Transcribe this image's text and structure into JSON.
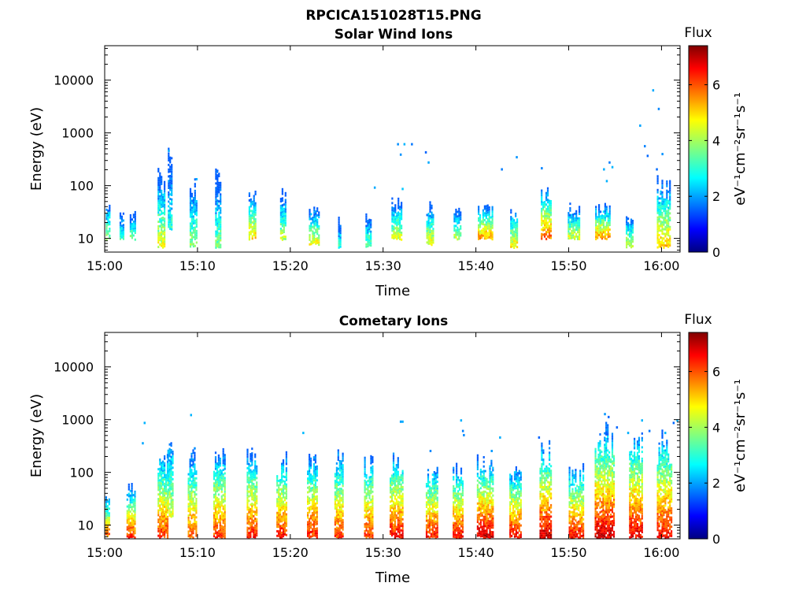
{
  "figure_title": "RPCICA151028T15.PNG",
  "colorbar": {
    "label": "Flux",
    "unit_label": "eV⁻¹cm⁻²sr⁻¹s⁻¹",
    "range": [
      0,
      7.4
    ],
    "ticks": [
      "0",
      "2",
      "4",
      "6"
    ],
    "colormap": "jet"
  },
  "chart_data": [
    {
      "type": "heatmap",
      "title": "Solar Wind Ions",
      "xlabel": "Time",
      "ylabel": "Energy (eV)",
      "xlim_minutes": [
        0,
        62
      ],
      "x_tick_labels": [
        "15:00",
        "15:10",
        "15:20",
        "15:30",
        "15:40",
        "15:50",
        "16:00"
      ],
      "x_tick_values_minutes": [
        0,
        10,
        20,
        30,
        40,
        50,
        60
      ],
      "ylim_eV": [
        5.5,
        45000
      ],
      "yscale": "log",
      "y_tick_labels": [
        "10",
        "100",
        "1000",
        "10000"
      ],
      "y_tick_values": [
        10,
        100,
        1000,
        10000
      ],
      "bursts": [
        {
          "t": 0.2,
          "dur": 0.5,
          "lo": 10,
          "hi": 60,
          "peak": 4.4
        },
        {
          "t": 1.8,
          "dur": 0.4,
          "lo": 10,
          "hi": 40,
          "peak": 3.8
        },
        {
          "t": 3.0,
          "dur": 0.6,
          "lo": 10,
          "hi": 30,
          "peak": 4.4
        },
        {
          "t": 6.1,
          "dur": 0.8,
          "lo": 7,
          "hi": 200,
          "peak": 5.0
        },
        {
          "t": 7.0,
          "dur": 0.4,
          "lo": 15,
          "hi": 600,
          "peak": 3.6
        },
        {
          "t": 9.5,
          "dur": 0.7,
          "lo": 7,
          "hi": 150,
          "peak": 4.4
        },
        {
          "t": 12.2,
          "dur": 0.6,
          "lo": 7,
          "hi": 200,
          "peak": 4.2
        },
        {
          "t": 15.9,
          "dur": 0.8,
          "lo": 10,
          "hi": 90,
          "peak": 5.3
        },
        {
          "t": 19.2,
          "dur": 0.6,
          "lo": 10,
          "hi": 90,
          "peak": 4.6
        },
        {
          "t": 22.5,
          "dur": 1.0,
          "lo": 8,
          "hi": 45,
          "peak": 5.0
        },
        {
          "t": 25.3,
          "dur": 0.3,
          "lo": 7,
          "hi": 25,
          "peak": 3.6
        },
        {
          "t": 28.4,
          "dur": 0.6,
          "lo": 7,
          "hi": 30,
          "peak": 4.2
        },
        {
          "t": 31.4,
          "dur": 1.0,
          "lo": 10,
          "hi": 60,
          "peak": 4.8
        },
        {
          "t": 35.0,
          "dur": 0.7,
          "lo": 8,
          "hi": 50,
          "peak": 5.0
        },
        {
          "t": 38.0,
          "dur": 0.8,
          "lo": 10,
          "hi": 40,
          "peak": 4.6
        },
        {
          "t": 41.0,
          "dur": 1.6,
          "lo": 10,
          "hi": 45,
          "peak": 5.8
        },
        {
          "t": 44.1,
          "dur": 0.8,
          "lo": 7,
          "hi": 40,
          "peak": 5.2
        },
        {
          "t": 47.5,
          "dur": 1.0,
          "lo": 10,
          "hi": 100,
          "peak": 6.2
        },
        {
          "t": 50.5,
          "dur": 1.2,
          "lo": 10,
          "hi": 45,
          "peak": 4.8
        },
        {
          "t": 53.6,
          "dur": 1.5,
          "lo": 10,
          "hi": 45,
          "peak": 5.8
        },
        {
          "t": 56.5,
          "dur": 0.7,
          "lo": 7,
          "hi": 30,
          "peak": 4.8
        },
        {
          "t": 60.2,
          "dur": 1.4,
          "lo": 7,
          "hi": 150,
          "peak": 5.6
        }
      ],
      "sparse_points": [
        {
          "t": 31.5,
          "e": 600
        },
        {
          "t": 32.2,
          "e": 600
        },
        {
          "t": 33.0,
          "e": 600
        },
        {
          "t": 31.8,
          "e": 380
        },
        {
          "t": 34.5,
          "e": 420
        },
        {
          "t": 34.8,
          "e": 270
        },
        {
          "t": 42.7,
          "e": 200
        },
        {
          "t": 44.3,
          "e": 340
        },
        {
          "t": 47.0,
          "e": 210
        },
        {
          "t": 53.7,
          "e": 200
        },
        {
          "t": 54.3,
          "e": 270
        },
        {
          "t": 54.6,
          "e": 220
        },
        {
          "t": 54.0,
          "e": 120
        },
        {
          "t": 57.6,
          "e": 1350
        },
        {
          "t": 58.1,
          "e": 550
        },
        {
          "t": 58.4,
          "e": 360
        },
        {
          "t": 59.0,
          "e": 6300
        },
        {
          "t": 59.6,
          "e": 2800
        },
        {
          "t": 60.0,
          "e": 390
        },
        {
          "t": 59.4,
          "e": 200
        },
        {
          "t": 29.0,
          "e": 90
        },
        {
          "t": 32.0,
          "e": 85
        },
        {
          "t": 12.0,
          "e": 180
        },
        {
          "t": 9.8,
          "e": 130
        },
        {
          "t": 6.8,
          "e": 450
        }
      ]
    },
    {
      "type": "heatmap",
      "title": "Cometary Ions",
      "xlabel": "Time",
      "ylabel": "Energy (eV)",
      "xlim_minutes": [
        0,
        62
      ],
      "x_tick_labels": [
        "15:00",
        "15:10",
        "15:20",
        "15:30",
        "15:40",
        "15:50",
        "16:00"
      ],
      "x_tick_values_minutes": [
        0,
        10,
        20,
        30,
        40,
        50,
        60
      ],
      "ylim_eV": [
        5.5,
        45000
      ],
      "yscale": "log",
      "y_tick_labels": [
        "10",
        "100",
        "1000",
        "10000"
      ],
      "y_tick_values": [
        10,
        100,
        1000,
        10000
      ],
      "bursts": [
        {
          "t": 0.2,
          "dur": 0.6,
          "lo": 6,
          "hi": 40,
          "peak": 6.3
        },
        {
          "t": 2.8,
          "dur": 0.9,
          "lo": 6,
          "hi": 60,
          "peak": 6.6
        },
        {
          "t": 6.2,
          "dur": 1.0,
          "lo": 6,
          "hi": 300,
          "peak": 6.6
        },
        {
          "t": 7.0,
          "dur": 0.5,
          "lo": 15,
          "hi": 800,
          "peak": 5.0
        },
        {
          "t": 9.4,
          "dur": 0.9,
          "lo": 6,
          "hi": 300,
          "peak": 6.4
        },
        {
          "t": 12.3,
          "dur": 1.2,
          "lo": 6,
          "hi": 300,
          "peak": 6.6
        },
        {
          "t": 15.8,
          "dur": 1.0,
          "lo": 6,
          "hi": 300,
          "peak": 6.8
        },
        {
          "t": 19.0,
          "dur": 1.0,
          "lo": 6,
          "hi": 250,
          "peak": 6.8
        },
        {
          "t": 22.3,
          "dur": 1.0,
          "lo": 6,
          "hi": 250,
          "peak": 6.8
        },
        {
          "t": 25.2,
          "dur": 0.9,
          "lo": 6,
          "hi": 300,
          "peak": 6.6
        },
        {
          "t": 28.4,
          "dur": 0.9,
          "lo": 6,
          "hi": 250,
          "peak": 6.6
        },
        {
          "t": 31.4,
          "dur": 1.4,
          "lo": 6,
          "hi": 300,
          "peak": 6.9
        },
        {
          "t": 35.2,
          "dur": 1.2,
          "lo": 6,
          "hi": 150,
          "peak": 6.8
        },
        {
          "t": 38.0,
          "dur": 1.0,
          "lo": 6,
          "hi": 150,
          "peak": 6.9
        },
        {
          "t": 41.0,
          "dur": 1.8,
          "lo": 6,
          "hi": 200,
          "peak": 7.3
        },
        {
          "t": 44.2,
          "dur": 1.2,
          "lo": 6,
          "hi": 150,
          "peak": 6.9
        },
        {
          "t": 47.5,
          "dur": 1.3,
          "lo": 6,
          "hi": 400,
          "peak": 7.3
        },
        {
          "t": 50.8,
          "dur": 1.6,
          "lo": 6,
          "hi": 150,
          "peak": 6.9
        },
        {
          "t": 53.8,
          "dur": 2.0,
          "lo": 6,
          "hi": 900,
          "peak": 7.3
        },
        {
          "t": 57.2,
          "dur": 1.4,
          "lo": 6,
          "hi": 700,
          "peak": 7.1
        },
        {
          "t": 60.3,
          "dur": 1.6,
          "lo": 6,
          "hi": 700,
          "peak": 7.0
        }
      ],
      "sparse_points": [
        {
          "t": 4.2,
          "e": 850
        },
        {
          "t": 9.2,
          "e": 1200
        },
        {
          "t": 4.0,
          "e": 350
        },
        {
          "t": 21.3,
          "e": 550
        },
        {
          "t": 31.8,
          "e": 900
        },
        {
          "t": 32.0,
          "e": 900
        },
        {
          "t": 38.3,
          "e": 950
        },
        {
          "t": 38.5,
          "e": 600
        },
        {
          "t": 38.6,
          "e": 500
        },
        {
          "t": 42.5,
          "e": 450
        },
        {
          "t": 46.7,
          "e": 450
        },
        {
          "t": 53.8,
          "e": 1250
        },
        {
          "t": 54.2,
          "e": 1100
        },
        {
          "t": 55.1,
          "e": 700
        },
        {
          "t": 56.3,
          "e": 550
        },
        {
          "t": 57.8,
          "e": 950
        },
        {
          "t": 58.6,
          "e": 600
        },
        {
          "t": 60.3,
          "e": 550
        },
        {
          "t": 61.2,
          "e": 850
        },
        {
          "t": 61.6,
          "e": 950
        },
        {
          "t": 9.6,
          "e": 280
        },
        {
          "t": 35.0,
          "e": 250
        },
        {
          "t": 41.6,
          "e": 250
        }
      ]
    }
  ]
}
